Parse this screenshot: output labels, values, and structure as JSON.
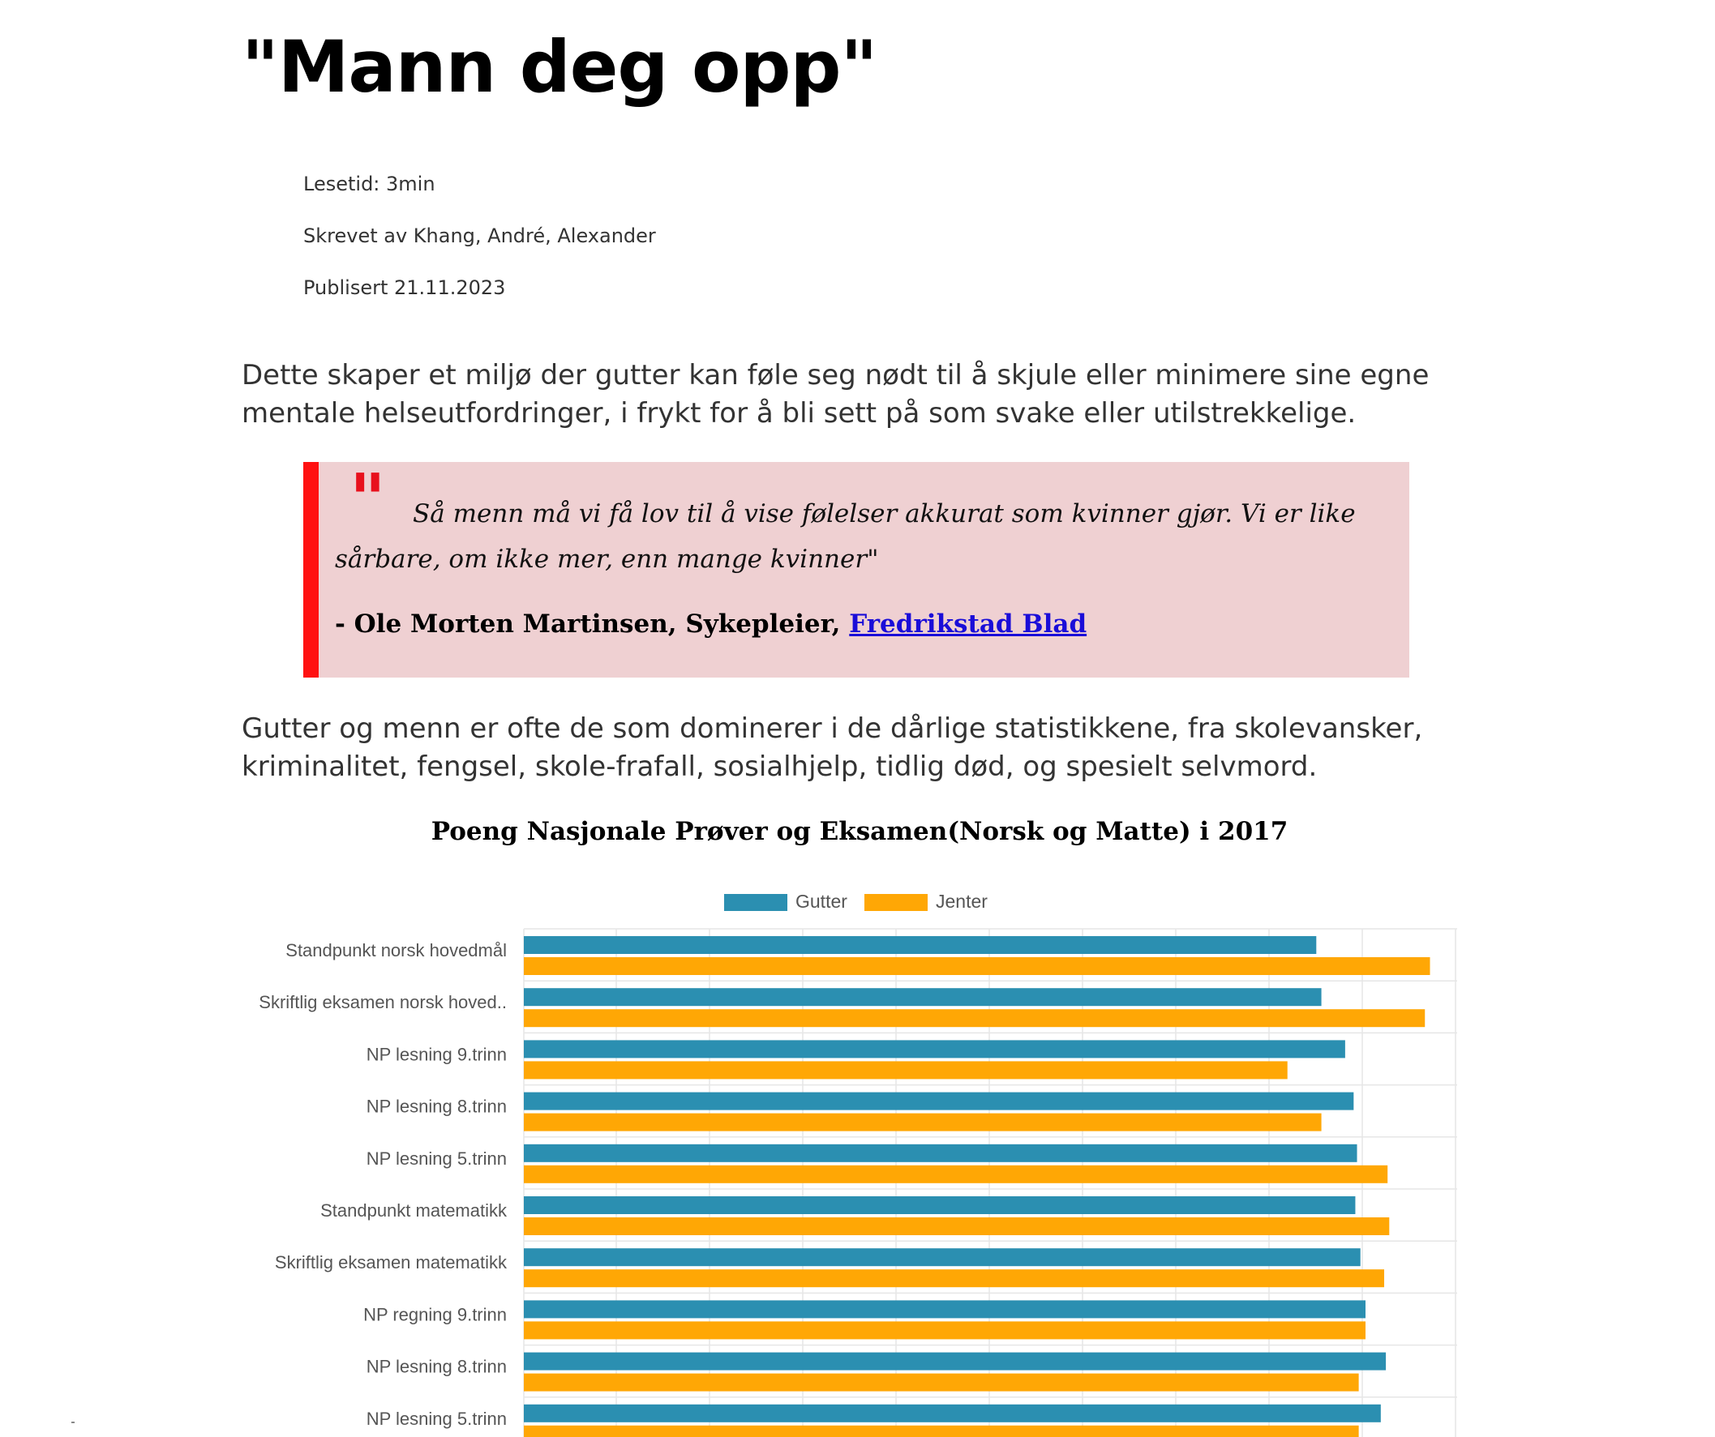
{
  "article": {
    "title": "\"Mann deg opp\"",
    "reading_time": "Lesetid: 3min",
    "authors": "Skrevet av Khang, André, Alexander",
    "published": "Publisert 21.11.2023",
    "paragraph1": "Dette skaper et miljø der gutter kan føle seg nødt til å skjule eller minimere sine egne mentale helseutfordringer, i frykt for å bli sett på som svake eller utilstrekkelige.",
    "paragraph2": "Gutter og menn er ofte de som dominerer i de dårlige statistikkene, fra skolevansker, kriminalitet, fengsel, skole-frafall, sosialhjelp, tidlig død, og spesielt selvmord."
  },
  "quote": {
    "mark": "\"",
    "text": "Så menn må vi få lov til å vise følelser akkurat som kvinner gjør. Vi er like sårbare, om ikke mer, enn mange kvinner\"",
    "attribution": "- Ole Morten Martinsen, Sykepleier, ",
    "source_link": "Fredrikstad Blad"
  },
  "colors": {
    "gutter": "#2b8fb1",
    "jenter": "#ffa705",
    "quote_border": "#ff1111",
    "quote_bg": "#efd0d2",
    "link": "#1a0dd8"
  },
  "chart_data": {
    "type": "bar",
    "orientation": "horizontal",
    "title": "Poeng Nasjonale Prøver og Eksamen(Norsk og Matte) i 2017",
    "legend_position": "top",
    "grid": true,
    "categories": [
      "Standpunkt norsk hovedmål",
      "Skriftlig eksamen norsk hoved..",
      "NP lesning 9.trinn",
      "NP lesning 8.trinn",
      "NP lesning 5.trinn",
      "Standpunkt matematikk",
      "Skriftlig eksamen matematikk",
      "NP regning 9.trinn",
      "NP lesning 8.trinn",
      "NP lesning 5.trinn"
    ],
    "xlim": [
      0,
      55
    ],
    "series": [
      {
        "name": "Gutter",
        "color": "#2b8fb1",
        "values": [
          46.7,
          47.0,
          48.4,
          48.9,
          49.1,
          49.0,
          49.3,
          49.6,
          50.8,
          50.5
        ]
      },
      {
        "name": "Jenter",
        "color": "#ffa705",
        "values": [
          53.4,
          53.1,
          45.0,
          47.0,
          50.9,
          51.0,
          50.7,
          49.6,
          49.2,
          49.2
        ]
      }
    ]
  }
}
